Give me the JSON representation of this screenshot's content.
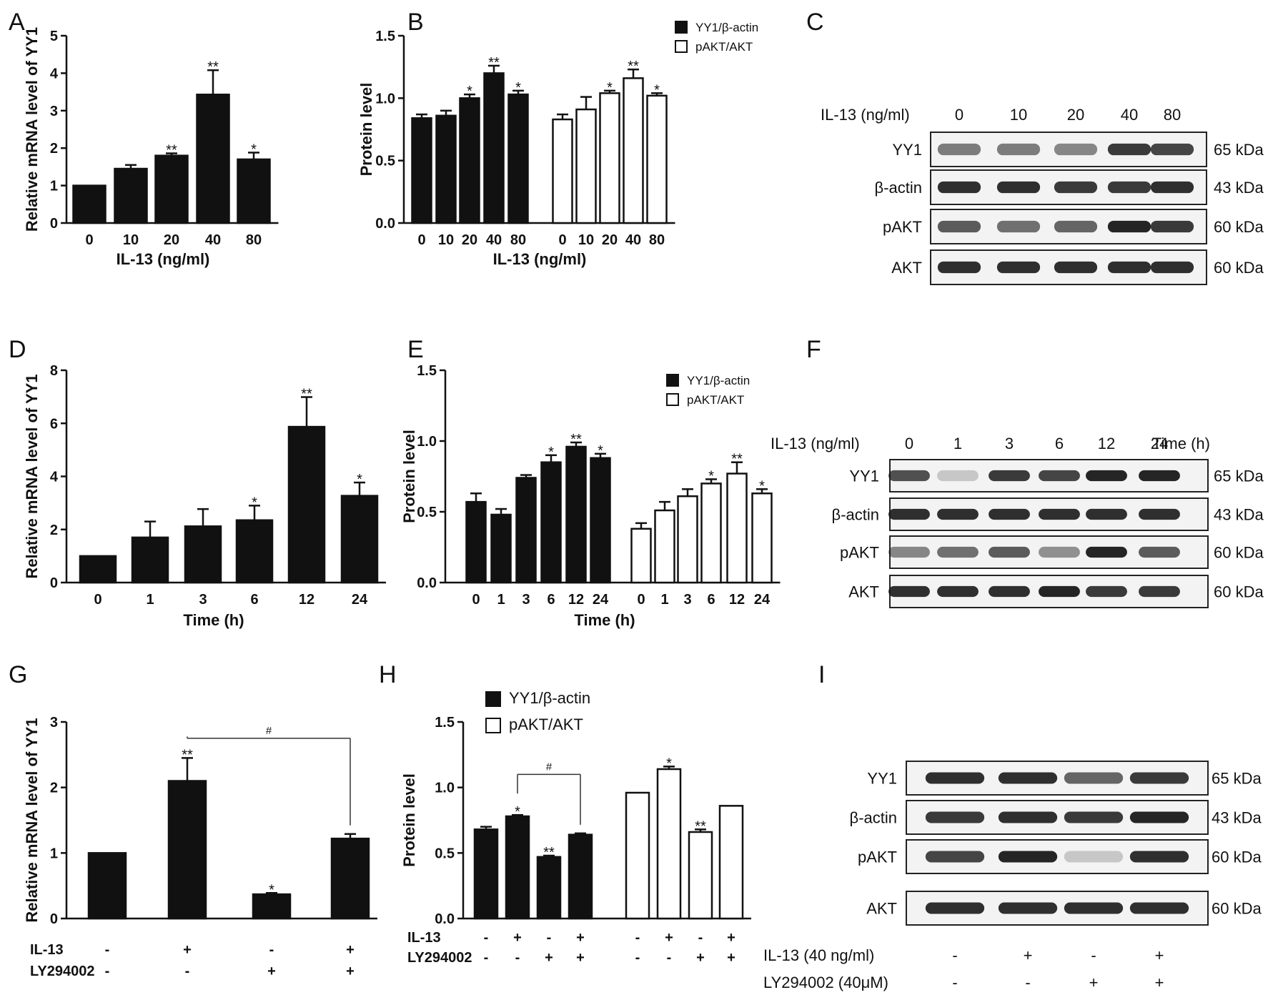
{
  "panels": {
    "A": "A",
    "B": "B",
    "C": "C",
    "D": "D",
    "E": "E",
    "F": "F",
    "G": "G",
    "H": "H",
    "I": "I"
  },
  "chart_data": [
    {
      "id": "A",
      "type": "bar",
      "ylabel": "Relative mRNA level of YY1",
      "xlabel": "IL-13 (ng/ml)",
      "categories": [
        "0",
        "10",
        "20",
        "40",
        "80"
      ],
      "values": [
        1.0,
        1.45,
        1.8,
        3.43,
        1.7
      ],
      "errors": [
        0,
        0.1,
        0.06,
        0.65,
        0.18
      ],
      "stars": [
        "",
        "",
        "**",
        "**",
        "*"
      ],
      "ylim": [
        0,
        5
      ],
      "yticks": [
        0,
        1,
        2,
        3,
        4,
        5
      ]
    },
    {
      "id": "B",
      "type": "bar",
      "ylabel": "Protein  level",
      "xlabel": "IL-13 (ng/ml)",
      "categories": [
        "0",
        "10",
        "20",
        "40",
        "80"
      ],
      "series": [
        {
          "name": "YY1/β-actin",
          "fill": "#111111",
          "values": [
            0.84,
            0.86,
            1.0,
            1.2,
            1.03
          ],
          "errors": [
            0.03,
            0.04,
            0.03,
            0.06,
            0.03
          ],
          "stars": [
            "",
            "",
            "*",
            "**",
            "*"
          ]
        },
        {
          "name": "pAKT/AKT",
          "fill": "#ffffff",
          "values": [
            0.83,
            0.91,
            1.04,
            1.16,
            1.02
          ],
          "errors": [
            0.04,
            0.1,
            0.02,
            0.07,
            0.02
          ],
          "stars": [
            "",
            "",
            "*",
            "**",
            "*"
          ]
        }
      ],
      "ylim": [
        0,
        1.5
      ],
      "yticks": [
        "0.0",
        "0.5",
        "1.0",
        "1.5"
      ]
    },
    {
      "id": "D",
      "type": "bar",
      "ylabel": "Relative mRNA level of YY1",
      "xlabel": "Time (h)",
      "categories": [
        "0",
        "1",
        "3",
        "6",
        "12",
        "24"
      ],
      "values": [
        1.0,
        1.7,
        2.12,
        2.35,
        5.87,
        3.27
      ],
      "errors": [
        0,
        0.6,
        0.65,
        0.55,
        1.12,
        0.5
      ],
      "stars": [
        "",
        "",
        "",
        "*",
        "**",
        "*"
      ],
      "ylim": [
        0,
        8
      ],
      "yticks": [
        0,
        2,
        4,
        6,
        8
      ]
    },
    {
      "id": "E",
      "type": "bar",
      "ylabel": "Protein  level",
      "xlabel": "Time (h)",
      "categories": [
        "0",
        "1",
        "3",
        "6",
        "12",
        "24"
      ],
      "series": [
        {
          "name": "YY1/β-actin",
          "fill": "#111111",
          "values": [
            0.57,
            0.48,
            0.74,
            0.85,
            0.96,
            0.88
          ],
          "errors": [
            0.06,
            0.04,
            0.02,
            0.05,
            0.03,
            0.03
          ],
          "stars": [
            "",
            "",
            "",
            "*",
            "**",
            "*"
          ]
        },
        {
          "name": "pAKT/AKT",
          "fill": "#ffffff",
          "values": [
            0.38,
            0.51,
            0.61,
            0.7,
            0.77,
            0.63
          ],
          "errors": [
            0.04,
            0.06,
            0.05,
            0.03,
            0.08,
            0.03
          ],
          "stars": [
            "",
            "",
            "",
            "*",
            "**",
            "*"
          ]
        }
      ],
      "ylim": [
        0,
        1.5
      ],
      "yticks": [
        "0.0",
        "0.5",
        "1.0",
        "1.5"
      ]
    },
    {
      "id": "G",
      "type": "bar",
      "ylabel": "Relative mRNA level of YY1",
      "values": [
        1.0,
        2.1,
        0.37,
        1.22
      ],
      "errors": [
        0,
        0.35,
        0.02,
        0.07
      ],
      "stars": [
        "",
        "**",
        "*",
        ""
      ],
      "bracket": {
        "from": 1,
        "to": 3,
        "label": "#"
      },
      "row_labels": [
        "IL-13",
        "LY294002"
      ],
      "row_values": [
        [
          "-",
          "+",
          "-",
          "+"
        ],
        [
          "-",
          "-",
          "+",
          "+"
        ]
      ],
      "ylim": [
        0,
        3
      ],
      "yticks": [
        0,
        1,
        2,
        3
      ]
    },
    {
      "id": "H",
      "type": "bar",
      "ylabel": "Protein  level",
      "series": [
        {
          "name": "YY1/β-actin",
          "fill": "#111111",
          "values": [
            0.68,
            0.78,
            0.47,
            0.64
          ],
          "errors": [
            0.02,
            0.01,
            0.01,
            0.01
          ],
          "stars": [
            "",
            "*",
            "**",
            ""
          ]
        },
        {
          "name": "pAKT/AKT",
          "fill": "#ffffff",
          "values": [
            0.96,
            1.14,
            0.66,
            0.86
          ],
          "errors": [
            0,
            0.02,
            0.02,
            0
          ],
          "stars": [
            "",
            "*",
            "**",
            ""
          ]
        }
      ],
      "bracket": {
        "from": 1,
        "to": 3,
        "label": "#"
      },
      "row_labels": [
        "IL-13",
        "LY294002"
      ],
      "row_values": [
        [
          "-",
          "+",
          "-",
          "+"
        ],
        [
          "-",
          "-",
          "+",
          "+"
        ]
      ],
      "ylim": [
        0,
        1.5
      ],
      "yticks": [
        "0.0",
        "0.5",
        "1.0",
        "1.5"
      ]
    }
  ],
  "blots": {
    "C": {
      "header_label": "IL-13 (ng/ml)",
      "lanes": [
        "0",
        "10",
        "20",
        "40",
        "80"
      ],
      "rows": [
        {
          "label": "YY1",
          "kda": "65 kDa",
          "intensity": [
            0.55,
            0.55,
            0.5,
            0.85,
            0.8
          ]
        },
        {
          "label": "β-actin",
          "kda": "43 kDa",
          "intensity": [
            0.9,
            0.9,
            0.85,
            0.85,
            0.9
          ]
        },
        {
          "label": "pAKT",
          "kda": "60 kDa",
          "intensity": [
            0.7,
            0.6,
            0.65,
            0.95,
            0.85
          ]
        },
        {
          "label": "AKT",
          "kda": "60 kDa",
          "intensity": [
            0.9,
            0.9,
            0.9,
            0.9,
            0.9
          ]
        }
      ]
    },
    "F": {
      "header_label": "IL-13 (ng/ml)",
      "lanes": [
        "0",
        "1",
        "3",
        "6",
        "12",
        "24"
      ],
      "trailing_label": "Time (h)",
      "rows": [
        {
          "label": "YY1",
          "kda": "65 kDa",
          "intensity": [
            0.75,
            0.2,
            0.85,
            0.8,
            0.95,
            0.95
          ]
        },
        {
          "label": "β-actin",
          "kda": "43 kDa",
          "intensity": [
            0.9,
            0.9,
            0.9,
            0.9,
            0.9,
            0.9
          ]
        },
        {
          "label": "pAKT",
          "kda": "60 kDa",
          "intensity": [
            0.5,
            0.6,
            0.7,
            0.45,
            0.95,
            0.7
          ]
        },
        {
          "label": "AKT",
          "kda": "60 kDa",
          "intensity": [
            0.9,
            0.9,
            0.9,
            0.95,
            0.85,
            0.85
          ]
        }
      ]
    },
    "I": {
      "rows": [
        {
          "label": "YY1",
          "kda": "65 kDa",
          "intensity": [
            0.9,
            0.9,
            0.65,
            0.85
          ]
        },
        {
          "label": "β-actin",
          "kda": "43 kDa",
          "intensity": [
            0.85,
            0.9,
            0.85,
            0.95
          ]
        },
        {
          "label": "pAKT",
          "kda": "60 kDa",
          "intensity": [
            0.8,
            0.95,
            0.2,
            0.9
          ]
        },
        {
          "label": "AKT",
          "kda": "60 kDa",
          "intensity": [
            0.9,
            0.9,
            0.9,
            0.9
          ]
        }
      ],
      "row_labels": [
        "IL-13 (40 ng/ml)",
        "LY294002 (40μM)"
      ],
      "row_values": [
        [
          "-",
          "+",
          "-",
          "+"
        ],
        [
          "-",
          "-",
          "+",
          "+"
        ]
      ]
    }
  }
}
